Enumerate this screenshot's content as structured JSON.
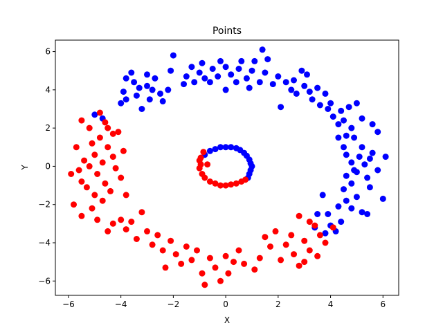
{
  "chart_data": {
    "type": "scatter",
    "title": "Points",
    "xlabel": "X",
    "ylabel": "Y",
    "xlim": [
      -6.5,
      6.6
    ],
    "ylim": [
      -6.75,
      6.6
    ],
    "xticks": [
      -6,
      -4,
      -2,
      0,
      2,
      4,
      6
    ],
    "yticks": [
      -6,
      -4,
      -2,
      0,
      2,
      4,
      6
    ],
    "grid": false,
    "legend": "none",
    "series": [
      {
        "color": "#0000ff",
        "points": [
          [
            -5.0,
            2.7
          ],
          [
            -4.7,
            2.5
          ],
          [
            -4.0,
            3.3
          ],
          [
            -3.8,
            3.5
          ],
          [
            -3.9,
            3.9
          ],
          [
            -3.8,
            4.6
          ],
          [
            -3.5,
            4.4
          ],
          [
            -3.6,
            4.9
          ],
          [
            -3.4,
            3.7
          ],
          [
            -3.3,
            4.1
          ],
          [
            -3.2,
            3.0
          ],
          [
            -3.0,
            4.2
          ],
          [
            -3.0,
            4.8
          ],
          [
            -2.9,
            3.5
          ],
          [
            -2.8,
            4.0
          ],
          [
            -2.7,
            4.6
          ],
          [
            -2.5,
            3.8
          ],
          [
            -2.4,
            3.4
          ],
          [
            -2.2,
            4.0
          ],
          [
            -2.1,
            5.0
          ],
          [
            -2.0,
            5.8
          ],
          [
            -1.6,
            4.3
          ],
          [
            -1.5,
            4.7
          ],
          [
            -1.3,
            5.2
          ],
          [
            -1.2,
            4.4
          ],
          [
            -1.0,
            4.9
          ],
          [
            -0.9,
            5.4
          ],
          [
            -0.8,
            4.6
          ],
          [
            -0.6,
            4.4
          ],
          [
            -0.5,
            5.1
          ],
          [
            -0.3,
            4.7
          ],
          [
            -0.2,
            5.5
          ],
          [
            0.0,
            5.2
          ],
          [
            0.0,
            4.0
          ],
          [
            0.2,
            4.8
          ],
          [
            0.4,
            4.4
          ],
          [
            0.5,
            5.1
          ],
          [
            0.6,
            5.5
          ],
          [
            0.8,
            4.6
          ],
          [
            0.9,
            4.1
          ],
          [
            1.0,
            5.0
          ],
          [
            1.1,
            5.5
          ],
          [
            1.3,
            4.4
          ],
          [
            1.4,
            6.1
          ],
          [
            1.5,
            4.9
          ],
          [
            1.6,
            5.6
          ],
          [
            1.8,
            4.3
          ],
          [
            2.0,
            4.7
          ],
          [
            2.1,
            3.1
          ],
          [
            2.3,
            4.4
          ],
          [
            2.5,
            4.0
          ],
          [
            2.6,
            4.5
          ],
          [
            2.7,
            3.8
          ],
          [
            2.9,
            5.0
          ],
          [
            3.0,
            4.2
          ],
          [
            3.1,
            4.8
          ],
          [
            3.2,
            3.9
          ],
          [
            3.3,
            3.5
          ],
          [
            3.5,
            4.1
          ],
          [
            3.6,
            3.2
          ],
          [
            3.8,
            3.8
          ],
          [
            3.9,
            3.0
          ],
          [
            4.0,
            3.3
          ],
          [
            4.1,
            2.6
          ],
          [
            4.3,
            1.5
          ],
          [
            4.3,
            2.2
          ],
          [
            4.4,
            2.9
          ],
          [
            4.5,
            2.4
          ],
          [
            4.6,
            1.6
          ],
          [
            4.7,
            3.1
          ],
          [
            4.8,
            2.0
          ],
          [
            4.9,
            1.5
          ],
          [
            4.5,
            1.0
          ],
          [
            4.6,
            0.6
          ],
          [
            4.8,
            0.2
          ],
          [
            4.9,
            -0.2
          ],
          [
            4.6,
            -0.5
          ],
          [
            4.8,
            -0.9
          ],
          [
            5.0,
            -0.3
          ],
          [
            5.1,
            0.5
          ],
          [
            5.2,
            1.0
          ],
          [
            5.3,
            0.1
          ],
          [
            5.4,
            -0.6
          ],
          [
            5.5,
            0.4
          ],
          [
            5.5,
            -1.1
          ],
          [
            5.6,
            0.7
          ],
          [
            5.8,
            1.8
          ],
          [
            5.8,
            -0.2
          ],
          [
            6.0,
            -1.7
          ],
          [
            6.1,
            0.5
          ],
          [
            5.6,
            2.2
          ],
          [
            5.2,
            2.5
          ],
          [
            5.0,
            3.3
          ],
          [
            4.5,
            -1.2
          ],
          [
            4.6,
            -1.8
          ],
          [
            4.8,
            -2.2
          ],
          [
            5.0,
            -1.6
          ],
          [
            5.2,
            -2.4
          ],
          [
            5.4,
            -2.5
          ],
          [
            4.3,
            -2.1
          ],
          [
            4.4,
            -2.9
          ],
          [
            4.2,
            -3.4
          ],
          [
            4.0,
            -3.1
          ],
          [
            3.9,
            -2.5
          ],
          [
            3.8,
            -3.5
          ],
          [
            3.5,
            -2.5
          ],
          [
            3.7,
            -1.5
          ],
          [
            3.4,
            -3.2
          ],
          [
            -0.8,
            0.6
          ],
          [
            -0.6,
            0.8
          ],
          [
            -0.4,
            0.9
          ],
          [
            -0.2,
            1.0
          ],
          [
            0.0,
            1.0
          ],
          [
            0.2,
            1.0
          ],
          [
            0.4,
            0.95
          ],
          [
            0.55,
            0.85
          ],
          [
            0.7,
            0.7
          ],
          [
            0.8,
            0.55
          ],
          [
            0.9,
            0.35
          ],
          [
            0.95,
            0.15
          ],
          [
            1.0,
            0.0
          ],
          [
            0.95,
            -0.2
          ],
          [
            0.9,
            -0.4
          ],
          [
            0.85,
            -0.6
          ]
        ]
      },
      {
        "color": "#ff0000",
        "points": [
          [
            -5.9,
            -0.4
          ],
          [
            -5.7,
            1.0
          ],
          [
            -5.6,
            -0.2
          ],
          [
            -5.5,
            -0.8
          ],
          [
            -5.4,
            0.3
          ],
          [
            -5.3,
            -1.1
          ],
          [
            -5.2,
            0.0
          ],
          [
            -5.1,
            1.2
          ],
          [
            -5.0,
            -1.5
          ],
          [
            -5.0,
            0.6
          ],
          [
            -4.9,
            -0.4
          ],
          [
            -4.8,
            1.5
          ],
          [
            -4.7,
            -1.8
          ],
          [
            -4.7,
            0.2
          ],
          [
            -4.6,
            -0.9
          ],
          [
            -4.5,
            1.0
          ],
          [
            -4.4,
            -1.3
          ],
          [
            -4.3,
            0.5
          ],
          [
            -4.2,
            -0.1
          ],
          [
            -4.1,
            1.8
          ],
          [
            -4.0,
            -0.6
          ],
          [
            -3.9,
            0.8
          ],
          [
            -3.8,
            -1.5
          ],
          [
            -5.5,
            2.4
          ],
          [
            -5.2,
            2.0
          ],
          [
            -4.8,
            2.8
          ],
          [
            -4.6,
            2.3
          ],
          [
            -4.5,
            2.0
          ],
          [
            -4.3,
            1.7
          ],
          [
            -5.8,
            -2.0
          ],
          [
            -5.5,
            -2.6
          ],
          [
            -5.1,
            -2.2
          ],
          [
            -4.9,
            -2.8
          ],
          [
            -4.5,
            -3.4
          ],
          [
            -4.3,
            -3.0
          ],
          [
            -4.0,
            -2.8
          ],
          [
            -3.8,
            -3.3
          ],
          [
            -3.6,
            -2.9
          ],
          [
            -3.4,
            -3.8
          ],
          [
            -3.2,
            -2.4
          ],
          [
            -3.0,
            -3.4
          ],
          [
            -2.8,
            -4.1
          ],
          [
            -2.6,
            -3.6
          ],
          [
            -2.4,
            -4.4
          ],
          [
            -2.3,
            -5.3
          ],
          [
            -2.1,
            -3.9
          ],
          [
            -1.9,
            -4.6
          ],
          [
            -1.7,
            -5.1
          ],
          [
            -1.5,
            -4.2
          ],
          [
            -1.3,
            -4.9
          ],
          [
            -1.1,
            -4.4
          ],
          [
            -0.9,
            -5.6
          ],
          [
            -0.8,
            -6.2
          ],
          [
            -0.6,
            -4.8
          ],
          [
            -0.4,
            -5.3
          ],
          [
            -0.2,
            -6.0
          ],
          [
            0.0,
            -4.7
          ],
          [
            0.1,
            -5.6
          ],
          [
            0.3,
            -5.0
          ],
          [
            0.5,
            -4.4
          ],
          [
            0.7,
            -5.1
          ],
          [
            1.1,
            -5.4
          ],
          [
            1.3,
            -4.8
          ],
          [
            1.5,
            -3.7
          ],
          [
            1.7,
            -4.2
          ],
          [
            1.9,
            -3.4
          ],
          [
            2.1,
            -4.9
          ],
          [
            2.3,
            -4.1
          ],
          [
            2.5,
            -3.6
          ],
          [
            2.6,
            -4.6
          ],
          [
            2.8,
            -5.2
          ],
          [
            3.0,
            -3.9
          ],
          [
            3.2,
            -4.4
          ],
          [
            3.4,
            -3.1
          ],
          [
            3.6,
            -3.6
          ],
          [
            3.8,
            -4.0
          ],
          [
            4.1,
            -3.2
          ],
          [
            2.8,
            -2.6
          ],
          [
            3.2,
            -2.9
          ],
          [
            3.0,
            -5.0
          ],
          [
            3.5,
            -4.7
          ],
          [
            -1.0,
            0.3
          ],
          [
            -0.95,
            0.1
          ],
          [
            -1.0,
            -0.1
          ],
          [
            -0.9,
            -0.4
          ],
          [
            -0.8,
            -0.6
          ],
          [
            -0.6,
            -0.8
          ],
          [
            -0.4,
            -0.9
          ],
          [
            -0.2,
            -1.0
          ],
          [
            0.0,
            -1.0
          ],
          [
            0.2,
            -0.95
          ],
          [
            0.4,
            -0.9
          ],
          [
            0.6,
            -0.8
          ],
          [
            0.75,
            -0.7
          ],
          [
            -0.95,
            0.45
          ],
          [
            -0.85,
            0.75
          ],
          [
            -0.7,
            0.1
          ]
        ]
      }
    ]
  }
}
